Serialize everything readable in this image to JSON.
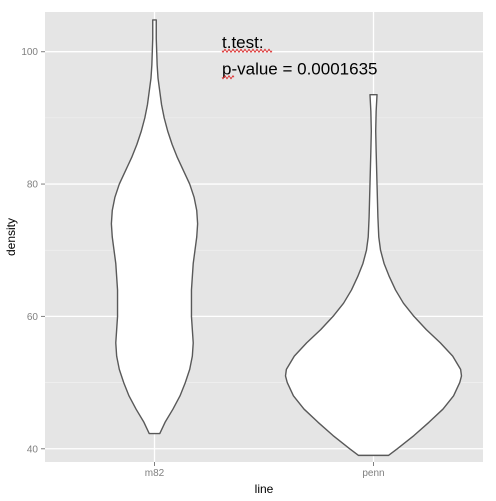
{
  "chart_data": {
    "type": "violin",
    "xlabel": "line",
    "ylabel": "density",
    "categories": [
      "m82",
      "penn"
    ],
    "ylim": [
      38,
      106
    ],
    "yticks": [
      40,
      60,
      80,
      100
    ],
    "grid": true,
    "background": "#e5e5e5",
    "violins": [
      {
        "category": "m82",
        "min": 42.3,
        "max": 104.8,
        "profile": [
          {
            "y": 42.3,
            "w": 0.06
          },
          {
            "y": 44,
            "w": 0.12
          },
          {
            "y": 46,
            "w": 0.21
          },
          {
            "y": 48,
            "w": 0.29
          },
          {
            "y": 50,
            "w": 0.35
          },
          {
            "y": 52,
            "w": 0.4
          },
          {
            "y": 54,
            "w": 0.43
          },
          {
            "y": 56,
            "w": 0.44
          },
          {
            "y": 58,
            "w": 0.43
          },
          {
            "y": 60,
            "w": 0.42
          },
          {
            "y": 62,
            "w": 0.42
          },
          {
            "y": 64,
            "w": 0.42
          },
          {
            "y": 66,
            "w": 0.43
          },
          {
            "y": 68,
            "w": 0.44
          },
          {
            "y": 70,
            "w": 0.46
          },
          {
            "y": 72,
            "w": 0.48
          },
          {
            "y": 74,
            "w": 0.49
          },
          {
            "y": 76,
            "w": 0.48
          },
          {
            "y": 78,
            "w": 0.45
          },
          {
            "y": 80,
            "w": 0.4
          },
          {
            "y": 82,
            "w": 0.33
          },
          {
            "y": 84,
            "w": 0.26
          },
          {
            "y": 86,
            "w": 0.2
          },
          {
            "y": 88,
            "w": 0.15
          },
          {
            "y": 90,
            "w": 0.11
          },
          {
            "y": 92,
            "w": 0.08
          },
          {
            "y": 94,
            "w": 0.06
          },
          {
            "y": 96,
            "w": 0.04
          },
          {
            "y": 98,
            "w": 0.03
          },
          {
            "y": 100,
            "w": 0.025
          },
          {
            "y": 102,
            "w": 0.02
          },
          {
            "y": 104.8,
            "w": 0.02
          }
        ]
      },
      {
        "category": "penn",
        "min": 39,
        "max": 93.5,
        "profile": [
          {
            "y": 39,
            "w": 0.17
          },
          {
            "y": 40,
            "w": 0.27
          },
          {
            "y": 42,
            "w": 0.46
          },
          {
            "y": 44,
            "w": 0.63
          },
          {
            "y": 46,
            "w": 0.79
          },
          {
            "y": 48,
            "w": 0.91
          },
          {
            "y": 50,
            "w": 0.98
          },
          {
            "y": 51,
            "w": 1.0
          },
          {
            "y": 52,
            "w": 0.99
          },
          {
            "y": 54,
            "w": 0.9
          },
          {
            "y": 56,
            "w": 0.76
          },
          {
            "y": 58,
            "w": 0.6
          },
          {
            "y": 60,
            "w": 0.46
          },
          {
            "y": 62,
            "w": 0.34
          },
          {
            "y": 64,
            "w": 0.25
          },
          {
            "y": 66,
            "w": 0.18
          },
          {
            "y": 68,
            "w": 0.12
          },
          {
            "y": 70,
            "w": 0.08
          },
          {
            "y": 72,
            "w": 0.06
          },
          {
            "y": 75,
            "w": 0.05
          },
          {
            "y": 80,
            "w": 0.04
          },
          {
            "y": 85,
            "w": 0.03
          },
          {
            "y": 88,
            "w": 0.025
          },
          {
            "y": 91,
            "w": 0.03
          },
          {
            "y": 93.5,
            "w": 0.04
          }
        ]
      }
    ],
    "annotations": [
      {
        "text": "t.test:",
        "y": 101.5
      },
      {
        "text": "p-value = 0.0001635",
        "y": 97.5
      }
    ],
    "colors": {
      "panel": "#e5e5e5",
      "grid": "#ffffff",
      "violin_fill": "#ffffff",
      "violin_stroke": "#595959",
      "tick_text": "#7f7f7f",
      "spellcheck": "#dd2222"
    }
  }
}
